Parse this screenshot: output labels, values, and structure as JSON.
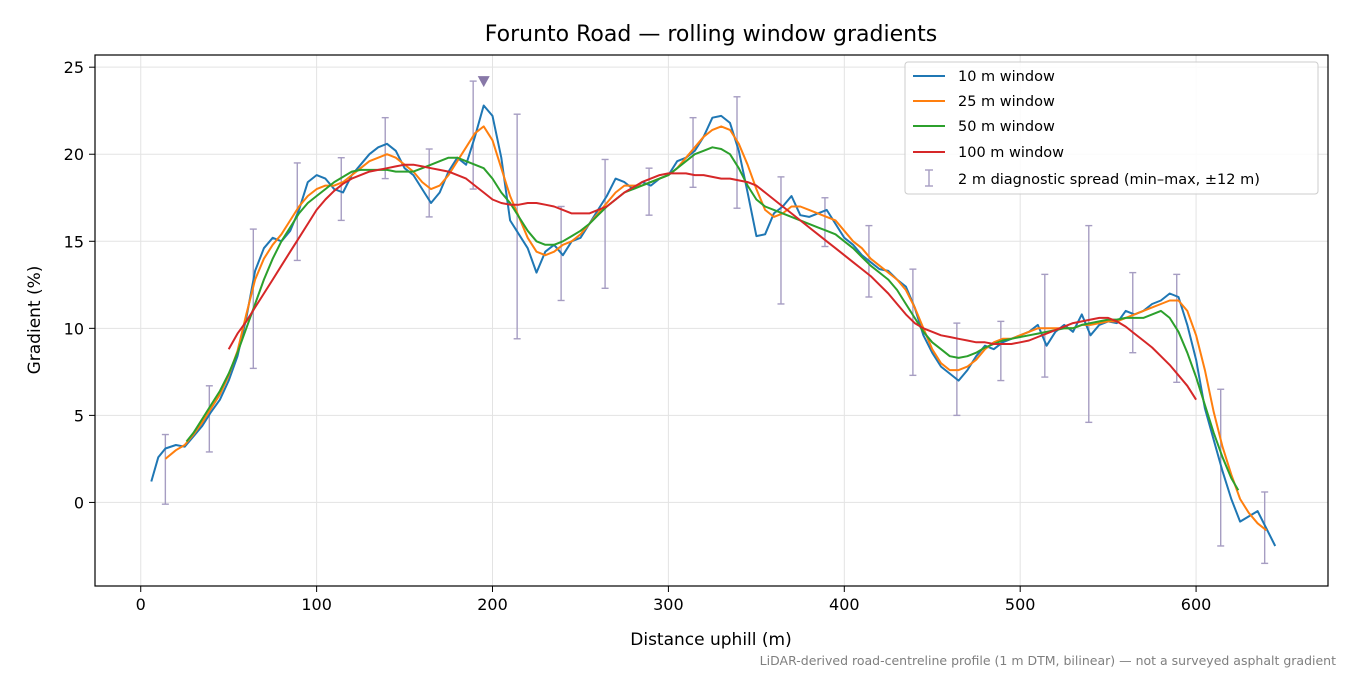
{
  "chart_data": {
    "type": "line",
    "title": "Forunto Road — rolling window gradients",
    "xlabel": "Distance uphill (m)",
    "ylabel": "Gradient (%)",
    "footnote": "LiDAR-derived road-centreline profile (1 m DTM, bilinear) — not a surveyed asphalt gradient",
    "xlim": [
      -26,
      675
    ],
    "ylim": [
      -4.8,
      25.7
    ],
    "xticks": [
      0,
      100,
      200,
      300,
      400,
      500,
      600
    ],
    "yticks": [
      0,
      5,
      10,
      15,
      20,
      25
    ],
    "grid": true,
    "legend_position": "top-right",
    "series": [
      {
        "name": "10 m window",
        "color": "#1f77b4",
        "x": [
          6,
          10,
          14,
          20,
          25,
          30,
          35,
          40,
          45,
          50,
          55,
          60,
          65,
          70,
          75,
          80,
          85,
          90,
          95,
          100,
          105,
          110,
          115,
          120,
          125,
          130,
          135,
          140,
          145,
          150,
          155,
          160,
          165,
          170,
          175,
          180,
          185,
          190,
          195,
          200,
          205,
          210,
          215,
          220,
          225,
          230,
          235,
          240,
          245,
          250,
          255,
          260,
          265,
          270,
          275,
          280,
          285,
          290,
          295,
          300,
          305,
          310,
          315,
          320,
          325,
          330,
          335,
          340,
          345,
          350,
          355,
          360,
          365,
          370,
          375,
          380,
          385,
          390,
          395,
          400,
          405,
          410,
          415,
          420,
          425,
          430,
          435,
          440,
          445,
          450,
          455,
          460,
          465,
          470,
          475,
          480,
          485,
          490,
          495,
          500,
          505,
          510,
          515,
          520,
          525,
          530,
          535,
          540,
          545,
          550,
          555,
          560,
          565,
          570,
          575,
          580,
          585,
          590,
          595,
          600,
          605,
          610,
          615,
          620,
          625,
          630,
          635,
          640,
          645
        ],
        "y": [
          1.2,
          2.6,
          3.1,
          3.3,
          3.2,
          3.8,
          4.4,
          5.2,
          5.9,
          7.0,
          8.4,
          10.6,
          13.3,
          14.6,
          15.2,
          15.0,
          15.6,
          16.8,
          18.4,
          18.8,
          18.6,
          18.0,
          17.8,
          18.8,
          19.4,
          20.0,
          20.4,
          20.6,
          20.2,
          19.2,
          18.8,
          18.0,
          17.2,
          17.8,
          19.0,
          19.8,
          19.4,
          21.0,
          22.8,
          22.2,
          19.8,
          16.2,
          15.4,
          14.6,
          13.2,
          14.4,
          14.8,
          14.2,
          15.0,
          15.2,
          16.0,
          16.8,
          17.6,
          18.6,
          18.4,
          18.0,
          18.4,
          18.2,
          18.6,
          18.8,
          19.6,
          19.8,
          20.2,
          21.0,
          22.1,
          22.2,
          21.8,
          20.2,
          17.8,
          15.3,
          15.4,
          16.6,
          17.0,
          17.6,
          16.5,
          16.4,
          16.6,
          16.8,
          16.0,
          15.2,
          14.8,
          14.2,
          13.8,
          13.4,
          13.3,
          12.8,
          12.4,
          11.2,
          9.6,
          8.6,
          7.8,
          7.4,
          7.0,
          7.6,
          8.4,
          9.0,
          8.8,
          9.2,
          9.4,
          9.6,
          9.8,
          10.2,
          9.0,
          9.8,
          10.2,
          9.8,
          10.8,
          9.6,
          10.2,
          10.4,
          10.3,
          11.0,
          10.8,
          11.0,
          11.4,
          11.6,
          12.0,
          11.8,
          10.2,
          8.2,
          5.4,
          3.6,
          1.8,
          0.2,
          -1.1,
          -0.8,
          -0.5,
          -1.5,
          -2.5
        ]
      },
      {
        "name": "25 m window",
        "color": "#ff7f0e",
        "x": [
          14,
          20,
          25,
          30,
          35,
          40,
          45,
          50,
          55,
          60,
          65,
          70,
          75,
          80,
          85,
          90,
          95,
          100,
          105,
          110,
          115,
          120,
          125,
          130,
          135,
          140,
          145,
          150,
          155,
          160,
          165,
          170,
          175,
          180,
          185,
          190,
          195,
          200,
          205,
          210,
          215,
          220,
          225,
          230,
          235,
          240,
          245,
          250,
          255,
          260,
          265,
          270,
          275,
          280,
          285,
          290,
          295,
          300,
          305,
          310,
          315,
          320,
          325,
          330,
          335,
          340,
          345,
          350,
          355,
          360,
          365,
          370,
          375,
          380,
          385,
          390,
          395,
          400,
          405,
          410,
          415,
          420,
          425,
          430,
          435,
          440,
          445,
          450,
          455,
          460,
          465,
          470,
          475,
          480,
          485,
          490,
          495,
          500,
          505,
          510,
          515,
          520,
          525,
          530,
          535,
          540,
          545,
          550,
          555,
          560,
          565,
          570,
          575,
          580,
          585,
          590,
          595,
          600,
          605,
          610,
          615,
          620,
          625,
          630,
          635,
          640
        ],
        "y": [
          2.5,
          3.0,
          3.3,
          3.9,
          4.6,
          5.4,
          6.2,
          7.3,
          8.7,
          10.8,
          12.8,
          14.0,
          14.8,
          15.4,
          16.2,
          17.0,
          17.6,
          18.0,
          18.2,
          18.2,
          18.4,
          18.8,
          19.2,
          19.6,
          19.8,
          20.0,
          19.8,
          19.4,
          19.0,
          18.4,
          18.0,
          18.2,
          18.8,
          19.6,
          20.4,
          21.2,
          21.6,
          20.8,
          19.2,
          17.6,
          16.4,
          15.2,
          14.4,
          14.2,
          14.4,
          14.8,
          15.0,
          15.4,
          16.0,
          16.6,
          17.2,
          17.8,
          18.2,
          18.2,
          18.2,
          18.4,
          18.6,
          18.8,
          19.2,
          19.8,
          20.4,
          21.0,
          21.4,
          21.6,
          21.4,
          20.6,
          19.4,
          18.0,
          16.8,
          16.4,
          16.6,
          17.0,
          17.0,
          16.8,
          16.6,
          16.4,
          16.2,
          15.6,
          15.0,
          14.6,
          14.0,
          13.6,
          13.2,
          12.8,
          12.2,
          11.2,
          10.0,
          8.8,
          8.0,
          7.6,
          7.6,
          7.8,
          8.2,
          8.8,
          9.2,
          9.4,
          9.4,
          9.6,
          9.8,
          10.0,
          10.0,
          10.0,
          10.0,
          10.0,
          10.2,
          10.2,
          10.3,
          10.4,
          10.4,
          10.6,
          10.8,
          11.0,
          11.2,
          11.4,
          11.6,
          11.6,
          11.0,
          9.6,
          7.6,
          5.2,
          3.2,
          1.6,
          0.2,
          -0.6,
          -1.2,
          -1.6
        ]
      },
      {
        "name": "50 m window",
        "color": "#2ca02c",
        "x": [
          26,
          30,
          35,
          40,
          45,
          50,
          55,
          60,
          65,
          70,
          75,
          80,
          85,
          90,
          95,
          100,
          105,
          110,
          115,
          120,
          125,
          130,
          135,
          140,
          145,
          150,
          155,
          160,
          165,
          170,
          175,
          180,
          185,
          190,
          195,
          200,
          205,
          210,
          215,
          220,
          225,
          230,
          235,
          240,
          245,
          250,
          255,
          260,
          265,
          270,
          275,
          280,
          285,
          290,
          295,
          300,
          305,
          310,
          315,
          320,
          325,
          330,
          335,
          340,
          345,
          350,
          355,
          360,
          365,
          370,
          375,
          380,
          385,
          390,
          395,
          400,
          405,
          410,
          415,
          420,
          425,
          430,
          435,
          440,
          445,
          450,
          455,
          460,
          465,
          470,
          475,
          480,
          485,
          490,
          495,
          500,
          505,
          510,
          515,
          520,
          525,
          530,
          535,
          540,
          545,
          550,
          555,
          560,
          565,
          570,
          575,
          580,
          585,
          590,
          595,
          600,
          605,
          610,
          615,
          620,
          624
        ],
        "y": [
          3.5,
          4.0,
          4.8,
          5.6,
          6.4,
          7.4,
          8.6,
          10.0,
          11.4,
          12.8,
          14.0,
          15.0,
          15.8,
          16.6,
          17.2,
          17.6,
          18.0,
          18.4,
          18.7,
          19.0,
          19.1,
          19.1,
          19.1,
          19.1,
          19.0,
          19.0,
          19.0,
          19.2,
          19.4,
          19.6,
          19.8,
          19.8,
          19.6,
          19.4,
          19.2,
          18.6,
          17.8,
          17.2,
          16.4,
          15.6,
          15.0,
          14.8,
          14.8,
          15.0,
          15.3,
          15.6,
          16.0,
          16.5,
          17.0,
          17.4,
          17.8,
          18.0,
          18.2,
          18.4,
          18.6,
          18.8,
          19.2,
          19.6,
          20.0,
          20.2,
          20.4,
          20.3,
          20.0,
          19.2,
          18.2,
          17.4,
          17.0,
          16.8,
          16.6,
          16.4,
          16.2,
          16.0,
          15.8,
          15.6,
          15.4,
          15.0,
          14.6,
          14.1,
          13.6,
          13.2,
          12.8,
          12.2,
          11.4,
          10.6,
          9.8,
          9.2,
          8.8,
          8.4,
          8.3,
          8.4,
          8.6,
          8.9,
          9.1,
          9.3,
          9.4,
          9.5,
          9.6,
          9.7,
          9.8,
          9.9,
          10.0,
          10.0,
          10.2,
          10.3,
          10.4,
          10.5,
          10.5,
          10.6,
          10.6,
          10.6,
          10.8,
          11.0,
          10.6,
          9.8,
          8.6,
          7.2,
          5.6,
          4.0,
          2.6,
          1.4,
          0.7
        ]
      },
      {
        "name": "100 m window",
        "color": "#d62728",
        "x": [
          50,
          55,
          60,
          65,
          70,
          75,
          80,
          85,
          90,
          95,
          100,
          105,
          110,
          115,
          120,
          125,
          130,
          135,
          140,
          145,
          150,
          155,
          160,
          165,
          170,
          175,
          180,
          185,
          190,
          195,
          200,
          205,
          210,
          215,
          220,
          225,
          230,
          235,
          240,
          245,
          250,
          255,
          260,
          265,
          270,
          275,
          280,
          285,
          290,
          295,
          300,
          305,
          310,
          315,
          320,
          325,
          330,
          335,
          340,
          345,
          350,
          355,
          360,
          365,
          370,
          375,
          380,
          385,
          390,
          395,
          400,
          405,
          410,
          415,
          420,
          425,
          430,
          435,
          440,
          445,
          450,
          455,
          460,
          465,
          470,
          475,
          480,
          485,
          490,
          495,
          500,
          505,
          510,
          515,
          520,
          525,
          530,
          535,
          540,
          545,
          550,
          555,
          560,
          565,
          570,
          575,
          580,
          585,
          590,
          595,
          600
        ],
        "y": [
          8.8,
          9.7,
          10.4,
          11.2,
          12.0,
          12.8,
          13.6,
          14.4,
          15.2,
          16.0,
          16.8,
          17.4,
          17.9,
          18.3,
          18.6,
          18.8,
          19.0,
          19.1,
          19.2,
          19.3,
          19.4,
          19.4,
          19.3,
          19.2,
          19.1,
          19.0,
          18.8,
          18.6,
          18.2,
          17.8,
          17.4,
          17.2,
          17.1,
          17.1,
          17.2,
          17.2,
          17.1,
          17.0,
          16.8,
          16.6,
          16.6,
          16.6,
          16.8,
          17.0,
          17.4,
          17.8,
          18.1,
          18.4,
          18.6,
          18.8,
          18.9,
          18.9,
          18.9,
          18.8,
          18.8,
          18.7,
          18.6,
          18.6,
          18.5,
          18.4,
          18.2,
          17.8,
          17.4,
          17.0,
          16.6,
          16.2,
          15.8,
          15.4,
          15.0,
          14.6,
          14.2,
          13.8,
          13.4,
          13.0,
          12.5,
          12.0,
          11.4,
          10.8,
          10.3,
          10.0,
          9.8,
          9.6,
          9.5,
          9.4,
          9.3,
          9.2,
          9.2,
          9.1,
          9.1,
          9.1,
          9.2,
          9.3,
          9.5,
          9.7,
          9.9,
          10.1,
          10.3,
          10.4,
          10.5,
          10.6,
          10.6,
          10.4,
          10.1,
          9.7,
          9.3,
          8.9,
          8.4,
          7.9,
          7.3,
          6.7,
          5.9
        ]
      }
    ],
    "errorbars": {
      "name": "2 m diagnostic spread (min–max, ±12 m)",
      "color": "#a69dc2",
      "x": [
        14,
        39,
        64,
        89,
        114,
        139,
        164,
        189,
        214,
        239,
        264,
        289,
        314,
        339,
        364,
        389,
        414,
        439,
        464,
        489,
        514,
        539,
        564,
        589,
        614,
        639
      ],
      "lo": [
        -0.1,
        2.9,
        7.7,
        13.9,
        16.2,
        18.6,
        16.4,
        18.0,
        9.4,
        11.6,
        12.3,
        16.5,
        18.1,
        16.9,
        11.4,
        14.7,
        11.8,
        7.3,
        5.0,
        7.0,
        7.2,
        4.6,
        8.6,
        6.9,
        -2.5,
        -3.5
      ],
      "hi": [
        3.9,
        6.7,
        15.7,
        19.5,
        19.8,
        22.1,
        20.3,
        24.2,
        22.3,
        17.0,
        19.7,
        19.2,
        22.1,
        23.3,
        18.7,
        17.5,
        15.9,
        13.4,
        10.3,
        10.4,
        13.1,
        15.9,
        13.2,
        13.1,
        6.5,
        0.6
      ]
    },
    "peak_marker": {
      "x": 195,
      "y": 24.2,
      "color": "#8878a8"
    }
  }
}
